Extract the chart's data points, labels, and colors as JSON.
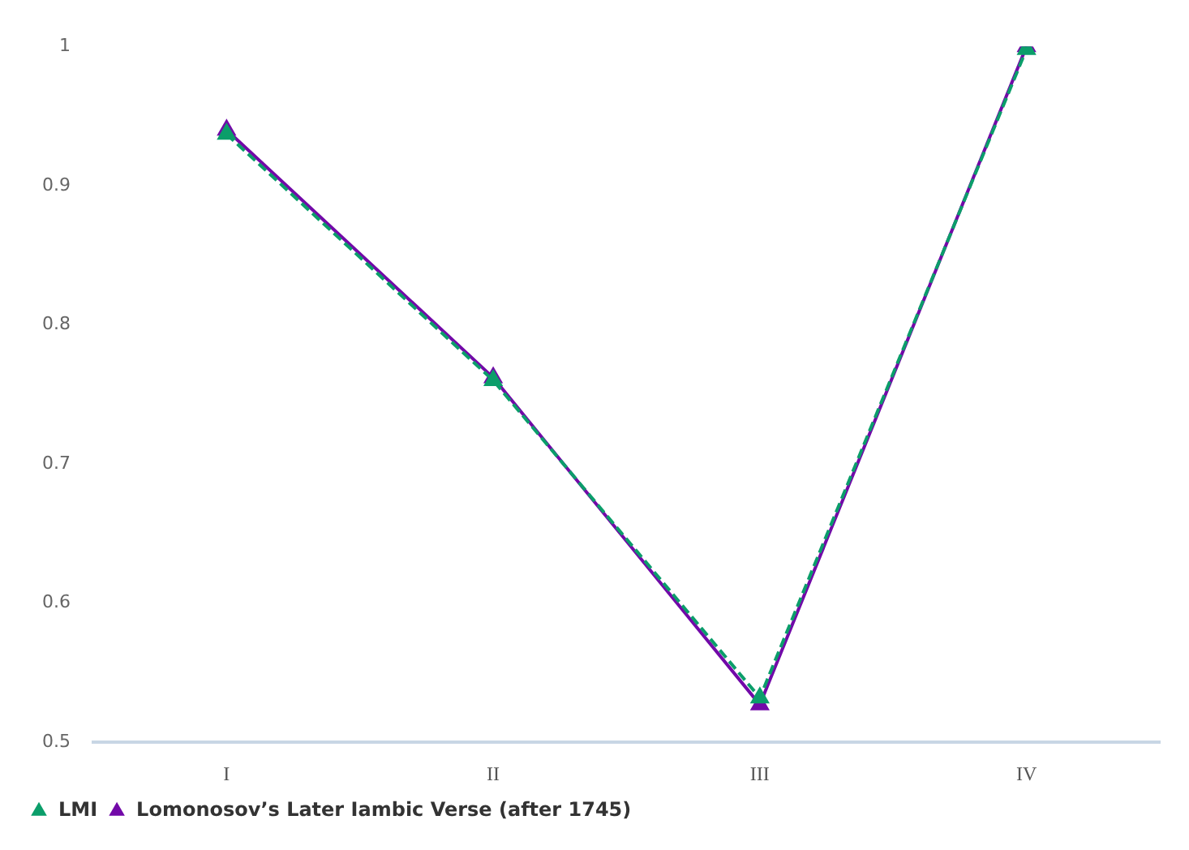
{
  "chart_data": {
    "type": "line",
    "categories": [
      "I",
      "II",
      "III",
      "IV"
    ],
    "series": [
      {
        "name": "Lomonosov’s Later Iambic Verse (after 1745)",
        "color": "#7209a8",
        "values": [
          0.94,
          0.762,
          0.527,
          1.0
        ],
        "marker": "triangle",
        "line_style": "solid"
      },
      {
        "name": "LMI",
        "color": "#0b9e6a",
        "values": [
          0.937,
          0.76,
          0.532,
          0.998
        ],
        "marker": "triangle",
        "line_style": "dashed"
      }
    ],
    "ylim": [
      0.5,
      1
    ],
    "yticks": [
      0.5,
      0.6,
      0.7,
      0.8,
      0.9,
      1
    ],
    "grid": false,
    "legend": "bottom left"
  }
}
